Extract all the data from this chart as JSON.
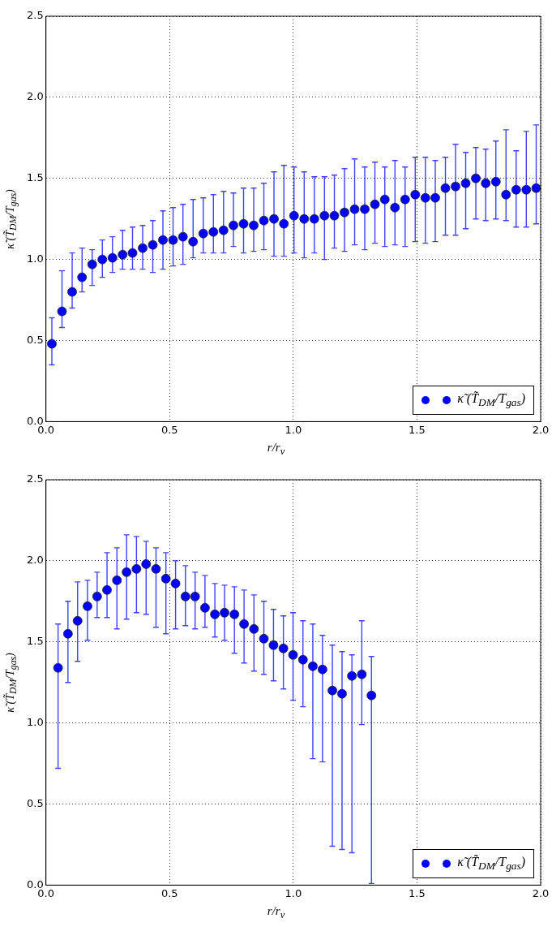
{
  "chart_data": [
    {
      "type": "scatter",
      "xlabel": "r/r$_{v}$",
      "ylabel": "κ̃ (T̃$_{DM}$/T$_{gas}$)",
      "xlim": [
        0,
        2
      ],
      "ylim": [
        0,
        2.5
      ],
      "xticks": [
        {
          "value": 0,
          "label": "0.0"
        },
        {
          "value": 0.5,
          "label": "0.5"
        },
        {
          "value": 1,
          "label": "1.0"
        },
        {
          "value": 1.5,
          "label": "1.5"
        },
        {
          "value": 2,
          "label": "2.0"
        }
      ],
      "yticks": [
        {
          "value": 0,
          "label": "0.0"
        },
        {
          "value": 0.5,
          "label": "0.5"
        },
        {
          "value": 1,
          "label": "1.0"
        },
        {
          "value": 1.5,
          "label": "1.5"
        },
        {
          "value": 2,
          "label": "2.0"
        },
        {
          "value": 2.5,
          "label": "2.5"
        }
      ],
      "grid": true,
      "legend": "bottom right",
      "marker": "circle",
      "series": [
        {
          "name": "κ̃ (T̃$_{DM}$/T$_{gas}$)",
          "color": "#0000ff",
          "x": [
            0.024,
            0.065,
            0.106,
            0.146,
            0.187,
            0.228,
            0.269,
            0.31,
            0.35,
            0.391,
            0.432,
            0.473,
            0.514,
            0.554,
            0.595,
            0.636,
            0.677,
            0.718,
            0.758,
            0.799,
            0.84,
            0.881,
            0.922,
            0.962,
            1.003,
            1.044,
            1.085,
            1.126,
            1.166,
            1.207,
            1.248,
            1.289,
            1.33,
            1.37,
            1.411,
            1.452,
            1.493,
            1.534,
            1.574,
            1.615,
            1.656,
            1.697,
            1.738,
            1.778,
            1.819,
            1.86,
            1.901,
            1.942,
            1.982
          ],
          "values": [
            0.48,
            0.68,
            0.8,
            0.89,
            0.97,
            1.0,
            1.01,
            1.03,
            1.04,
            1.07,
            1.09,
            1.12,
            1.12,
            1.14,
            1.11,
            1.16,
            1.17,
            1.18,
            1.21,
            1.22,
            1.21,
            1.24,
            1.25,
            1.22,
            1.27,
            1.25,
            1.25,
            1.27,
            1.27,
            1.29,
            1.31,
            1.31,
            1.34,
            1.37,
            1.32,
            1.37,
            1.4,
            1.38,
            1.38,
            1.44,
            1.45,
            1.47,
            1.5,
            1.47,
            1.48,
            1.4,
            1.43,
            1.43,
            1.44
          ],
          "errors": [
            [
              0.35,
              0.64
            ],
            [
              0.58,
              0.93
            ],
            [
              0.7,
              1.04
            ],
            [
              0.8,
              1.07
            ],
            [
              0.84,
              1.06
            ],
            [
              0.89,
              1.12
            ],
            [
              0.92,
              1.14
            ],
            [
              0.94,
              1.18
            ],
            [
              0.94,
              1.2
            ],
            [
              0.94,
              1.21
            ],
            [
              0.92,
              1.24
            ],
            [
              0.94,
              1.3
            ],
            [
              0.96,
              1.32
            ],
            [
              0.97,
              1.34
            ],
            [
              1.01,
              1.37
            ],
            [
              1.04,
              1.38
            ],
            [
              1.04,
              1.4
            ],
            [
              1.04,
              1.42
            ],
            [
              1.08,
              1.41
            ],
            [
              1.04,
              1.44
            ],
            [
              1.05,
              1.44
            ],
            [
              1.06,
              1.47
            ],
            [
              1.02,
              1.54
            ],
            [
              1.02,
              1.58
            ],
            [
              1.04,
              1.57
            ],
            [
              1.01,
              1.54
            ],
            [
              1.04,
              1.51
            ],
            [
              1.0,
              1.51
            ],
            [
              1.07,
              1.52
            ],
            [
              1.05,
              1.56
            ],
            [
              1.09,
              1.62
            ],
            [
              1.06,
              1.57
            ],
            [
              1.1,
              1.6
            ],
            [
              1.08,
              1.57
            ],
            [
              1.09,
              1.61
            ],
            [
              1.08,
              1.57
            ],
            [
              1.11,
              1.63
            ],
            [
              1.1,
              1.63
            ],
            [
              1.11,
              1.61
            ],
            [
              1.15,
              1.63
            ],
            [
              1.15,
              1.71
            ],
            [
              1.19,
              1.66
            ],
            [
              1.25,
              1.69
            ],
            [
              1.24,
              1.68
            ],
            [
              1.25,
              1.73
            ],
            [
              1.24,
              1.8
            ],
            [
              1.2,
              1.67
            ],
            [
              1.2,
              1.79
            ],
            [
              1.22,
              1.83
            ]
          ]
        }
      ]
    },
    {
      "type": "scatter",
      "xlabel": "r/r$_{v}$",
      "ylabel": "κ̃ (T̃$_{DM}$/T$_{gas}$)",
      "xlim": [
        0,
        2
      ],
      "ylim": [
        0,
        2.5
      ],
      "xticks": [
        {
          "value": 0,
          "label": "0.0"
        },
        {
          "value": 0.5,
          "label": "0.5"
        },
        {
          "value": 1,
          "label": "1.0"
        },
        {
          "value": 1.5,
          "label": "1.5"
        },
        {
          "value": 2,
          "label": "2.0"
        }
      ],
      "yticks": [
        {
          "value": 0,
          "label": "0.0"
        },
        {
          "value": 0.5,
          "label": "0.5"
        },
        {
          "value": 1,
          "label": "1.0"
        },
        {
          "value": 1.5,
          "label": "1.5"
        },
        {
          "value": 2,
          "label": "2.0"
        },
        {
          "value": 2.5,
          "label": "2.5"
        }
      ],
      "grid": true,
      "legend": "bottom right",
      "marker": "circle",
      "series": [
        {
          "name": "κ̃ (T̃$_{DM}$/T$_{gas}$)",
          "color": "#0000ff",
          "x": [
            0.049,
            0.089,
            0.128,
            0.168,
            0.207,
            0.247,
            0.287,
            0.326,
            0.366,
            0.405,
            0.445,
            0.485,
            0.524,
            0.564,
            0.603,
            0.643,
            0.683,
            0.722,
            0.762,
            0.801,
            0.841,
            0.881,
            0.92,
            0.96,
            0.999,
            1.039,
            1.079,
            1.118,
            1.158,
            1.197,
            1.237,
            1.277,
            1.316
          ],
          "values": [
            1.34,
            1.55,
            1.63,
            1.72,
            1.78,
            1.82,
            1.88,
            1.93,
            1.95,
            1.98,
            1.95,
            1.89,
            1.86,
            1.78,
            1.78,
            1.71,
            1.67,
            1.68,
            1.67,
            1.61,
            1.58,
            1.52,
            1.48,
            1.46,
            1.42,
            1.39,
            1.35,
            1.33,
            1.2,
            1.18,
            1.29,
            1.3,
            1.17
          ],
          "errors": [
            [
              0.72,
              1.61
            ],
            [
              1.25,
              1.75
            ],
            [
              1.38,
              1.87
            ],
            [
              1.51,
              1.88
            ],
            [
              1.65,
              1.93
            ],
            [
              1.65,
              2.05
            ],
            [
              1.58,
              2.08
            ],
            [
              1.64,
              2.16
            ],
            [
              1.68,
              2.15
            ],
            [
              1.67,
              2.12
            ],
            [
              1.59,
              2.08
            ],
            [
              1.55,
              2.05
            ],
            [
              1.58,
              2.0
            ],
            [
              1.6,
              1.97
            ],
            [
              1.58,
              1.93
            ],
            [
              1.59,
              1.91
            ],
            [
              1.53,
              1.86
            ],
            [
              1.51,
              1.85
            ],
            [
              1.43,
              1.84
            ],
            [
              1.37,
              1.82
            ],
            [
              1.32,
              1.79
            ],
            [
              1.3,
              1.75
            ],
            [
              1.26,
              1.7
            ],
            [
              1.21,
              1.66
            ],
            [
              1.14,
              1.68
            ],
            [
              1.1,
              1.63
            ],
            [
              0.78,
              1.61
            ],
            [
              0.76,
              1.54
            ],
            [
              0.24,
              1.48
            ],
            [
              0.22,
              1.44
            ],
            [
              0.2,
              1.42
            ],
            [
              0.99,
              1.63
            ],
            [
              0.01,
              1.41
            ]
          ]
        }
      ]
    }
  ]
}
